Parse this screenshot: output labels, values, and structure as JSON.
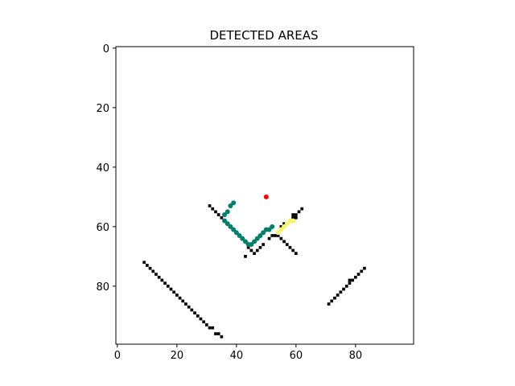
{
  "chart_data": {
    "type": "scatter",
    "title": "DETECTED AREAS",
    "xlabel": "",
    "ylabel": "",
    "xlim": [
      -0.5,
      99.5
    ],
    "ylim": [
      99.5,
      -0.5
    ],
    "y_inverted": true,
    "grid": false,
    "x_ticks": [
      0,
      20,
      40,
      60,
      80
    ],
    "y_ticks": [
      0,
      20,
      40,
      60,
      80
    ],
    "colors": {
      "black_pixels": "#000000",
      "green_points": "#00806b",
      "yellow_points": "#f5f56b",
      "red_point": "#ff0000"
    },
    "series": [
      {
        "marker": "square",
        "color": "#000000",
        "points": [
          [
            9,
            72
          ],
          [
            10,
            73
          ],
          [
            11,
            74
          ],
          [
            12,
            75
          ],
          [
            13,
            76
          ],
          [
            14,
            77
          ],
          [
            15,
            78
          ],
          [
            16,
            79
          ],
          [
            17,
            80
          ],
          [
            18,
            81
          ],
          [
            19,
            82
          ],
          [
            20,
            83
          ],
          [
            21,
            84
          ],
          [
            22,
            85
          ],
          [
            23,
            86
          ],
          [
            24,
            87
          ],
          [
            25,
            88
          ],
          [
            26,
            89
          ],
          [
            27,
            90
          ],
          [
            28,
            91
          ],
          [
            29,
            92
          ],
          [
            30,
            93
          ],
          [
            31,
            94
          ],
          [
            32,
            94
          ],
          [
            33,
            96
          ],
          [
            34,
            96
          ],
          [
            35,
            97
          ],
          [
            31,
            53
          ],
          [
            32,
            54
          ],
          [
            33,
            55
          ],
          [
            34,
            56
          ],
          [
            35,
            57
          ],
          [
            36,
            58
          ],
          [
            37,
            59
          ],
          [
            38,
            60
          ],
          [
            39,
            61
          ],
          [
            40,
            62
          ],
          [
            41,
            63
          ],
          [
            42,
            64
          ],
          [
            43,
            65
          ],
          [
            44,
            67
          ],
          [
            45,
            68
          ],
          [
            46,
            69
          ],
          [
            47,
            68
          ],
          [
            48,
            67
          ],
          [
            49,
            66
          ],
          [
            43,
            70
          ],
          [
            53,
            63
          ],
          [
            54,
            63
          ],
          [
            55,
            64
          ],
          [
            56,
            65
          ],
          [
            57,
            66
          ],
          [
            58,
            67
          ],
          [
            59,
            68
          ],
          [
            60,
            69
          ],
          [
            55,
            60
          ],
          [
            56,
            59
          ],
          [
            57,
            59
          ],
          [
            58,
            58
          ],
          [
            59,
            57
          ],
          [
            59,
            56
          ],
          [
            60,
            56
          ],
          [
            60,
            57
          ],
          [
            61,
            55
          ],
          [
            62,
            54
          ],
          [
            51,
            64
          ],
          [
            52,
            63
          ],
          [
            71,
            86
          ],
          [
            72,
            85
          ],
          [
            73,
            84
          ],
          [
            74,
            83
          ],
          [
            75,
            82
          ],
          [
            76,
            81
          ],
          [
            77,
            80
          ],
          [
            78,
            79
          ],
          [
            78,
            78
          ],
          [
            79,
            78
          ],
          [
            80,
            77
          ],
          [
            81,
            76
          ],
          [
            82,
            75
          ],
          [
            83,
            74
          ]
        ]
      },
      {
        "marker": "circle",
        "color": "#00806b",
        "points": [
          [
            39,
            52
          ],
          [
            38,
            53
          ],
          [
            37,
            55
          ],
          [
            36,
            56
          ],
          [
            36,
            58
          ],
          [
            37,
            59
          ],
          [
            38,
            60
          ],
          [
            39,
            61
          ],
          [
            40,
            62
          ],
          [
            41,
            63
          ],
          [
            42,
            64
          ],
          [
            43,
            65
          ],
          [
            44,
            66
          ],
          [
            45,
            66
          ],
          [
            46,
            65
          ],
          [
            47,
            64
          ],
          [
            48,
            63
          ],
          [
            49,
            62
          ],
          [
            50,
            61
          ],
          [
            51,
            61
          ],
          [
            52,
            60
          ]
        ]
      },
      {
        "marker": "circle",
        "color": "#f5f56b",
        "points": [
          [
            54,
            62
          ],
          [
            55,
            61
          ],
          [
            56,
            60
          ],
          [
            57,
            59
          ],
          [
            58,
            58
          ],
          [
            59,
            58
          ]
        ]
      },
      {
        "marker": "circle",
        "color": "#ff0000",
        "points": [
          [
            50,
            50
          ]
        ]
      }
    ]
  }
}
